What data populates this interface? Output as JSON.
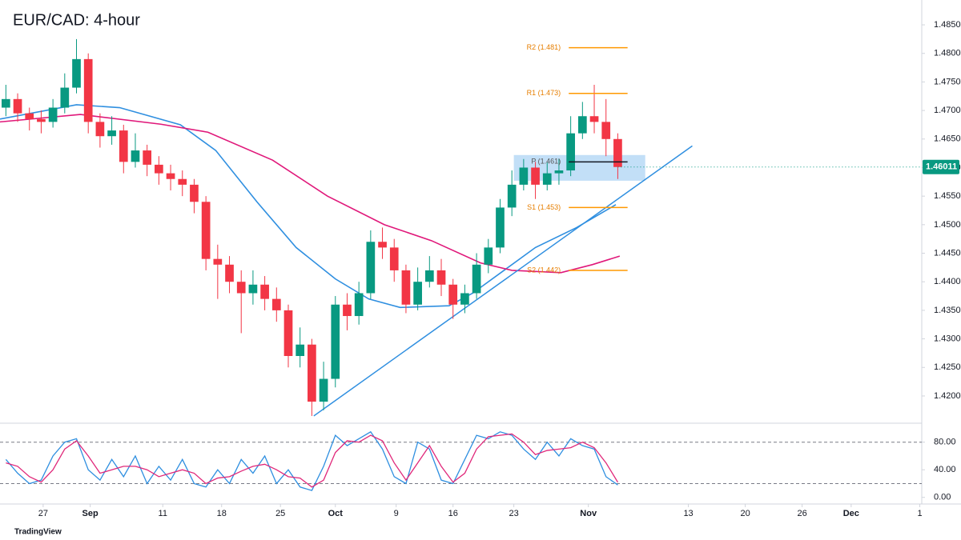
{
  "chart_data": {
    "type": "candlestick",
    "title": "EUR/CAD: 4-hour",
    "brand": "TradingView",
    "xlim": [
      0,
      470
    ],
    "xticks": [
      {
        "value": 22,
        "label": "27"
      },
      {
        "value": 46,
        "label": "Sep"
      },
      {
        "value": 83,
        "label": "11"
      },
      {
        "value": 113,
        "label": "18"
      },
      {
        "value": 143,
        "label": "25"
      },
      {
        "value": 171,
        "label": "Oct"
      },
      {
        "value": 202,
        "label": "9"
      },
      {
        "value": 231,
        "label": "16"
      },
      {
        "value": 262,
        "label": "23"
      },
      {
        "value": 300,
        "label": "Nov"
      },
      {
        "value": 351,
        "label": "13"
      },
      {
        "value": 380,
        "label": "20"
      },
      {
        "value": 409,
        "label": "26"
      },
      {
        "value": 434,
        "label": "Dec"
      },
      {
        "value": 469,
        "label": "1"
      }
    ],
    "ylim": [
      1.41523,
      1.48935
    ],
    "yticks": [
      {
        "value": 1.42,
        "label": "1.42000"
      },
      {
        "value": 1.425,
        "label": "1.42500"
      },
      {
        "value": 1.43,
        "label": "1.43000"
      },
      {
        "value": 1.435,
        "label": "1.43500"
      },
      {
        "value": 1.44,
        "label": "1.44000"
      },
      {
        "value": 1.445,
        "label": "1.44500"
      },
      {
        "value": 1.45,
        "label": "1.45000"
      },
      {
        "value": 1.455,
        "label": "1.45500"
      },
      {
        "value": 1.46,
        "label": "1.46000"
      },
      {
        "value": 1.465,
        "label": "1.46500"
      },
      {
        "value": 1.47,
        "label": "1.47000"
      },
      {
        "value": 1.475,
        "label": "1.47500"
      },
      {
        "value": 1.48,
        "label": "1.48000"
      },
      {
        "value": 1.485,
        "label": "1.48500"
      }
    ],
    "up_color": "#089981",
    "down_color": "#f23645",
    "x": [
      3,
      9,
      15,
      21,
      27,
      33,
      39,
      45,
      51,
      57,
      63,
      69,
      75,
      81,
      87,
      93,
      99,
      105,
      111,
      117,
      123,
      129,
      135,
      141,
      147,
      153,
      159,
      165,
      171,
      177,
      183,
      189,
      195,
      201,
      207,
      213,
      219,
      225,
      231,
      237,
      243,
      249,
      255,
      261,
      267,
      273,
      279,
      285,
      291,
      297,
      303,
      309,
      315
    ],
    "open": [
      1.4705,
      1.472,
      1.4695,
      1.4685,
      1.468,
      1.4705,
      1.474,
      1.479,
      1.468,
      1.4655,
      1.4665,
      1.461,
      1.463,
      1.4605,
      1.459,
      1.458,
      1.457,
      1.454,
      1.444,
      1.443,
      1.44,
      1.438,
      1.4395,
      1.437,
      1.435,
      1.427,
      1.429,
      1.419,
      1.423,
      1.436,
      1.434,
      1.438,
      1.447,
      1.446,
      1.442,
      1.436,
      1.44,
      1.442,
      1.4395,
      1.436,
      1.438,
      1.443,
      1.446,
      1.453,
      1.457,
      1.46,
      1.457,
      1.459,
      1.4595,
      1.466,
      1.469,
      1.468,
      1.465
    ],
    "high": [
      1.4745,
      1.473,
      1.4705,
      1.47,
      1.472,
      1.4765,
      1.4825,
      1.48,
      1.4695,
      1.469,
      1.4675,
      1.466,
      1.464,
      1.462,
      1.4605,
      1.4595,
      1.458,
      1.455,
      1.4465,
      1.4445,
      1.442,
      1.442,
      1.441,
      1.439,
      1.436,
      1.432,
      1.43,
      1.426,
      1.4375,
      1.438,
      1.44,
      1.449,
      1.4495,
      1.4475,
      1.443,
      1.4425,
      1.4445,
      1.444,
      1.4405,
      1.4395,
      1.445,
      1.4475,
      1.4545,
      1.4595,
      1.4615,
      1.461,
      1.461,
      1.4615,
      1.469,
      1.4715,
      1.4745,
      1.472,
      1.466
    ],
    "low": [
      1.469,
      1.468,
      1.4665,
      1.466,
      1.467,
      1.4695,
      1.473,
      1.466,
      1.4635,
      1.464,
      1.459,
      1.46,
      1.4585,
      1.457,
      1.456,
      1.455,
      1.452,
      1.442,
      1.437,
      1.438,
      1.431,
      1.436,
      1.435,
      1.433,
      1.425,
      1.425,
      1.4165,
      1.4175,
      1.4215,
      1.4315,
      1.4325,
      1.437,
      1.444,
      1.44,
      1.4345,
      1.435,
      1.439,
      1.4375,
      1.4335,
      1.4345,
      1.437,
      1.4415,
      1.445,
      1.4515,
      1.456,
      1.4545,
      1.456,
      1.457,
      1.4585,
      1.465,
      1.466,
      1.462,
      1.458
    ],
    "close": [
      1.472,
      1.4695,
      1.4685,
      1.468,
      1.4705,
      1.474,
      1.479,
      1.468,
      1.4655,
      1.4665,
      1.461,
      1.463,
      1.4605,
      1.459,
      1.458,
      1.457,
      1.454,
      1.444,
      1.443,
      1.44,
      1.438,
      1.4395,
      1.437,
      1.435,
      1.427,
      1.429,
      1.419,
      1.423,
      1.436,
      1.434,
      1.438,
      1.447,
      1.446,
      1.442,
      1.436,
      1.44,
      1.442,
      1.4395,
      1.436,
      1.438,
      1.443,
      1.446,
      1.453,
      1.457,
      1.46,
      1.457,
      1.459,
      1.4595,
      1.466,
      1.469,
      1.468,
      1.465,
      1.4601
    ],
    "moving_averages": [
      {
        "color": "#2f8fe0",
        "x": [
          0,
          39,
          61,
          92,
          110,
          131,
          151,
          171,
          188,
          204,
          229,
          241,
          257,
          273,
          294,
          314
        ],
        "values": [
          1.4685,
          1.471,
          1.4705,
          1.4675,
          1.463,
          1.454,
          1.446,
          1.4405,
          1.437,
          1.4355,
          1.4358,
          1.438,
          1.442,
          1.446,
          1.4495,
          1.4535
        ]
      },
      {
        "color": "#e0187a",
        "x": [
          0,
          41,
          82,
          106,
          139,
          167,
          196,
          220,
          245,
          261,
          286,
          302,
          316
        ],
        "values": [
          1.468,
          1.4693,
          1.4676,
          1.4662,
          1.4613,
          1.455,
          1.45,
          1.4472,
          1.4433,
          1.442,
          1.4416,
          1.443,
          1.4445
        ]
      }
    ],
    "trendline": {
      "color": "#2f8fe0",
      "x": [
        160,
        353
      ],
      "y": [
        1.4165,
        1.4638
      ]
    },
    "zone": {
      "color": "#90c4f0",
      "x": [
        262,
        329
      ],
      "y": [
        1.4577,
        1.4622
      ]
    },
    "pivots": {
      "x": [
        290,
        320
      ],
      "levels": [
        {
          "label": "R2 (1.481)",
          "value": 1.481,
          "color": "#ff9800"
        },
        {
          "label": "R1 (1.473)",
          "value": 1.473,
          "color": "#ff9800"
        },
        {
          "label": "P (1.461)",
          "value": 1.461,
          "color": "#131722"
        },
        {
          "label": "S1 (1.453)",
          "value": 1.453,
          "color": "#ff9800"
        },
        {
          "label": "S2 (1.442)",
          "value": 1.442,
          "color": "#ff9800"
        }
      ]
    },
    "last_price": {
      "value": 1.46011,
      "label": "1.46011",
      "color": "#089981"
    },
    "oscillator": {
      "ylim": [
        -9.6,
        107.5
      ],
      "yticks": [
        {
          "value": 0,
          "label": "0.00"
        },
        {
          "value": 40,
          "label": "40.00"
        },
        {
          "value": 80,
          "label": "80.00"
        }
      ],
      "levels": [
        20,
        80
      ],
      "series": [
        {
          "color": "#2f8fe0",
          "values": [
            55,
            35,
            20,
            25,
            60,
            80,
            85,
            40,
            25,
            55,
            30,
            60,
            20,
            45,
            25,
            55,
            20,
            15,
            40,
            20,
            55,
            35,
            60,
            20,
            40,
            15,
            10,
            45,
            90,
            75,
            85,
            95,
            70,
            30,
            20,
            80,
            70,
            25,
            20,
            55,
            90,
            85,
            95,
            90,
            70,
            55,
            80,
            60,
            85,
            75,
            70,
            30,
            18
          ]
        },
        {
          "color": "#e0287a",
          "values": [
            50,
            45,
            30,
            22,
            40,
            70,
            82,
            60,
            35,
            40,
            45,
            45,
            40,
            30,
            35,
            40,
            35,
            20,
            28,
            30,
            38,
            45,
            48,
            40,
            30,
            28,
            15,
            25,
            65,
            82,
            80,
            90,
            82,
            50,
            25,
            50,
            75,
            45,
            22,
            35,
            70,
            88,
            90,
            92,
            80,
            62,
            68,
            70,
            72,
            80,
            72,
            50,
            22
          ]
        }
      ]
    }
  }
}
